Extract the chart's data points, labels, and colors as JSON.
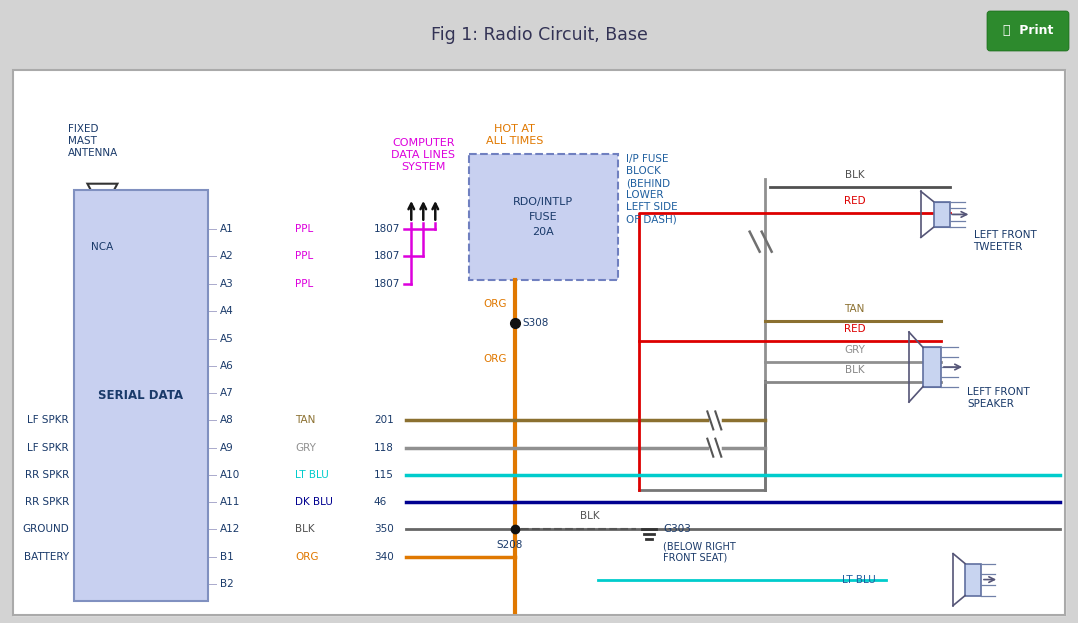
{
  "title": "Fig 1: Radio Circuit, Base",
  "header_bg": "#d3d3d3",
  "diagram_bg": "#ffffff",
  "title_color": "#333355",
  "print_bg": "#2d8a2d",
  "serial_data_bg": "#c8d0f0",
  "fuse_bg": "#c8d0f0",
  "text_blue": "#1a3a6a",
  "orange_label": "#e07800",
  "ppl_color": "#dd00dd",
  "tan_color": "#8b7030",
  "gry_color": "#909090",
  "ltblu_color": "#00cccc",
  "dkblu_color": "#000090",
  "blk_color": "#505050",
  "org_color": "#e07800",
  "red_color": "#dd0000",
  "pins": [
    [
      "A1",
      "PPL",
      "1807",
      0.292
    ],
    [
      "A2",
      "PPL",
      "1807",
      0.342
    ],
    [
      "A3",
      "PPL",
      "1807",
      0.393
    ],
    [
      "A4",
      "",
      "",
      0.443
    ],
    [
      "A5",
      "",
      "",
      0.493
    ],
    [
      "A6",
      "",
      "",
      0.543
    ],
    [
      "A7",
      "",
      "",
      0.593
    ],
    [
      "A8",
      "TAN",
      "201",
      0.643
    ],
    [
      "A9",
      "GRY",
      "118",
      0.693
    ],
    [
      "A10",
      "LT BLU",
      "115",
      0.743
    ],
    [
      "A11",
      "DK BLU",
      "46",
      0.793
    ],
    [
      "A12",
      "BLK",
      "350",
      0.843
    ],
    [
      "B1",
      "ORG",
      "340",
      0.893
    ],
    [
      "B2",
      "",
      "",
      0.943
    ]
  ],
  "left_pin_labels": {
    "0.643": "LF SPKR",
    "0.693": "LF SPKR",
    "0.743": "RR SPKR",
    "0.793": "RR SPKR",
    "0.843": "GROUND",
    "0.893": "BATTERY"
  }
}
